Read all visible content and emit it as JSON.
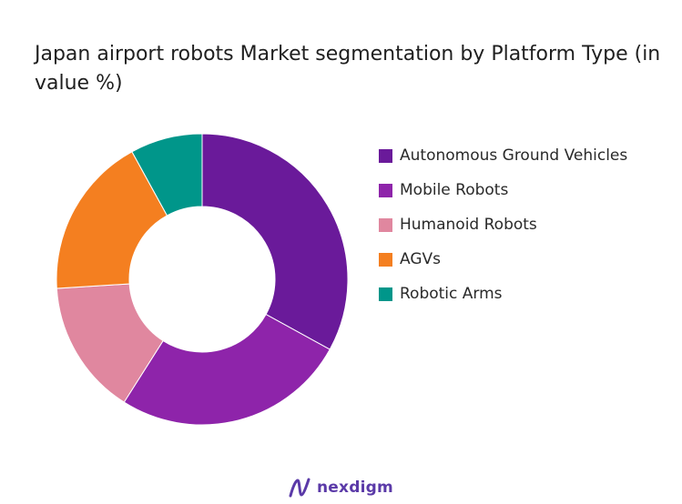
{
  "title": "Japan airport robots Market segmentation by Platform Type (in value %)",
  "brand": {
    "name": "nexdigm",
    "color": "#5b3aa8"
  },
  "chart_data": {
    "type": "pie",
    "variant": "donut",
    "title": "Japan airport robots Market segmentation by Platform Type (in value %)",
    "legend_position": "right",
    "series": [
      {
        "name": "Autonomous Ground Vehicles",
        "value": 33,
        "color": "#6a1a9a"
      },
      {
        "name": "Mobile Robots",
        "value": 26,
        "color": "#8e24aa"
      },
      {
        "name": "Humanoid Robots",
        "value": 15,
        "color": "#e0879f"
      },
      {
        "name": "AGVs",
        "value": 18,
        "color": "#f47f20"
      },
      {
        "name": "Robotic Arms",
        "value": 8,
        "color": "#00968a"
      }
    ]
  }
}
